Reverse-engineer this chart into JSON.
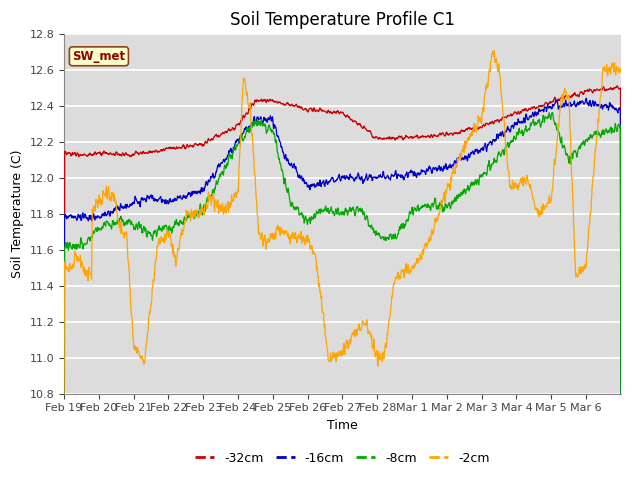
{
  "title": "Soil Temperature Profile C1",
  "xlabel": "Time",
  "ylabel": "Soil Temperature (C)",
  "ylim": [
    10.8,
    12.8
  ],
  "bg_color": "#dcdcdc",
  "grid_color": "#ffffff",
  "legend_label": "SW_met",
  "legend_box_color": "#ffffcc",
  "legend_box_edge": "#8B4513",
  "legend_text_color": "#8B0000",
  "series_colors": {
    "-32cm": "#cc0000",
    "-16cm": "#0000cc",
    "-8cm": "#00aa00",
    "-2cm": "#ffa500"
  },
  "xtick_labels": [
    "Feb 19",
    "Feb 20",
    "Feb 21",
    "Feb 22",
    "Feb 23",
    "Feb 24",
    "Feb 25",
    "Feb 26",
    "Feb 27",
    "Feb 28",
    "Mar 1",
    "Mar 2",
    "Mar 3",
    "Mar 4",
    "Mar 5",
    "Mar 6"
  ],
  "yticks": [
    10.8,
    11.0,
    11.2,
    11.4,
    11.6,
    11.8,
    12.0,
    12.2,
    12.4,
    12.6,
    12.8
  ],
  "title_fontsize": 12,
  "axis_label_fontsize": 9,
  "tick_fontsize": 8,
  "legend_fontsize": 9,
  "n_days": 16,
  "n_per_day": 96
}
